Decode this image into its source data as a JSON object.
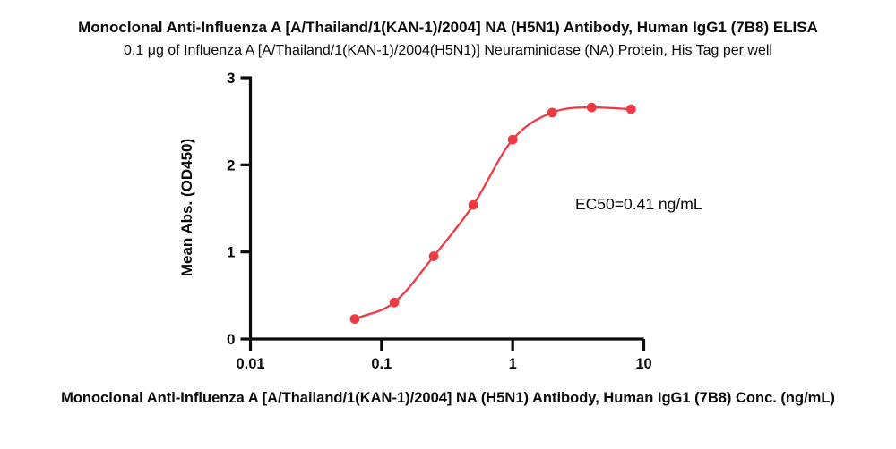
{
  "header": {
    "title": "Monoclonal Anti-Influenza A [A/Thailand/1(KAN-1)/2004] NA (H5N1) Antibody, Human IgG1 (7B8) ELISA",
    "subtitle": "0.1 μg of Influenza A [A/Thailand/1(KAN-1)/2004(H5N1)] Neuraminidase (NA) Protein, His Tag per well"
  },
  "chart_data": {
    "type": "scatter",
    "x": [
      0.0625,
      0.125,
      0.25,
      0.5,
      1,
      2,
      4,
      8
    ],
    "y": [
      0.23,
      0.42,
      0.95,
      1.54,
      2.29,
      2.6,
      2.66,
      2.64
    ],
    "curve": "4PL sigmoid fit through points",
    "x_scale": "log10",
    "xlim": [
      0.01,
      10
    ],
    "ylim": [
      0,
      3
    ],
    "x_ticks": [
      0.01,
      0.1,
      1,
      10
    ],
    "x_tick_labels": [
      "0.01",
      "0.1",
      "1",
      "10"
    ],
    "y_ticks": [
      0,
      1,
      2,
      3
    ],
    "y_tick_labels": [
      "0",
      "1",
      "2",
      "3"
    ],
    "xlabel": "Monoclonal Anti-Influenza A [A/Thailand/1(KAN-1)/2004] NA (H5N1) Antibody, Human IgG1 (7B8) Conc. (ng/mL)",
    "ylabel": "Mean Abs. (OD450)",
    "annotation": "EC50=0.41 ng/mL",
    "grid": false,
    "legend": "none",
    "colors": {
      "curve": "#ee3a42",
      "marker": "#ee3a42",
      "axis": "#0a0a0a",
      "text": "#0a0a0a",
      "background": "#ffffff"
    }
  }
}
